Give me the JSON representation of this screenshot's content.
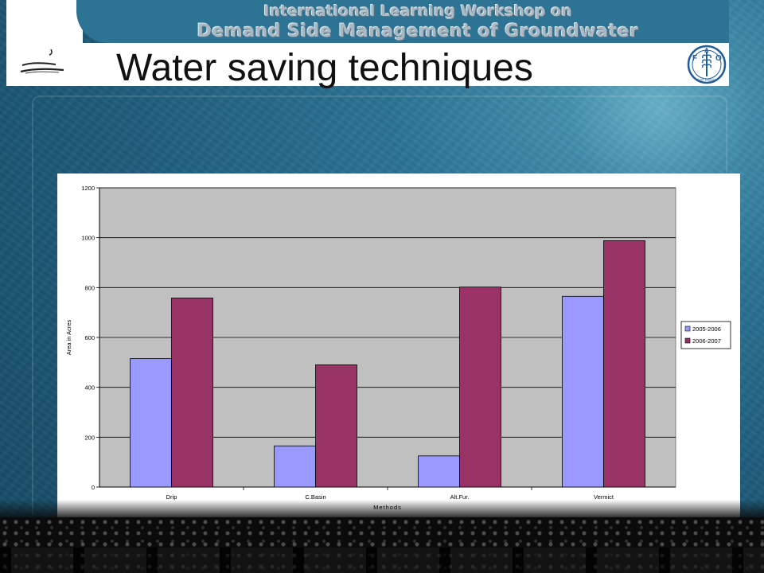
{
  "header": {
    "workshop_line1": "International Learning Workshop on",
    "workshop_line2": "Demand Side Management of Groundwater",
    "title": "Water saving techniques"
  },
  "logos": {
    "left": "workshop-logo",
    "right": "fao-logo",
    "fao_letters": [
      "F",
      "A",
      "O"
    ],
    "fao_motto": "FIAT PANIS"
  },
  "colors": {
    "series_2005": "#9999ff",
    "series_2006": "#993366",
    "plot_bg": "#c0c0c0",
    "slide_bg": "#2c7394"
  },
  "chart_data": {
    "type": "bar",
    "title": "",
    "xlabel": "Methods",
    "ylabel": "Area in Acres",
    "ylim": [
      0,
      1200
    ],
    "yticks": [
      0,
      200,
      400,
      600,
      800,
      1000,
      1200
    ],
    "categories": [
      "Drip",
      "C.Basin",
      "Alt.Fur.",
      "Vermict"
    ],
    "series": [
      {
        "name": "2005-2006",
        "values": [
          515,
          165,
          125,
          765
        ]
      },
      {
        "name": "2006-2007",
        "values": [
          758,
          490,
          802,
          988
        ]
      }
    ],
    "grid": true,
    "legend": "right"
  }
}
